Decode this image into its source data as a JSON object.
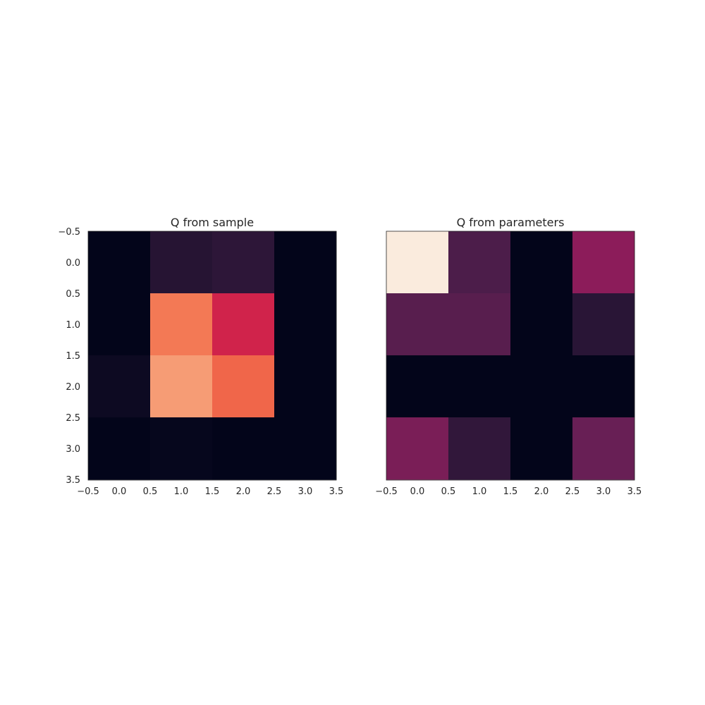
{
  "chart_data": [
    {
      "type": "heatmap",
      "title": "Q from sample",
      "xlabel": "",
      "ylabel": "",
      "xlim": [
        -0.5,
        3.5
      ],
      "ylim": [
        3.5,
        -0.5
      ],
      "y_axis_inverted": true,
      "x_tick_labels": [
        "−0.5",
        "0.0",
        "0.5",
        "1.0",
        "1.5",
        "2.0",
        "2.5",
        "3.0",
        "3.5"
      ],
      "y_tick_labels": [
        "−0.5",
        "0.0",
        "0.5",
        "1.0",
        "1.5",
        "2.0",
        "2.5",
        "3.0",
        "3.5"
      ],
      "show_y_ticks": true,
      "grid": false,
      "colormap": "rocket",
      "values": [
        [
          0.0,
          0.1,
          0.12,
          0.0
        ],
        [
          0.0,
          0.72,
          0.52,
          0.0
        ],
        [
          0.03,
          0.8,
          0.68,
          0.0
        ],
        [
          0.0,
          0.01,
          0.0,
          0.0
        ]
      ]
    },
    {
      "type": "heatmap",
      "title": "Q from parameters",
      "xlabel": "",
      "ylabel": "",
      "xlim": [
        -0.5,
        3.5
      ],
      "ylim": [
        3.5,
        -0.5
      ],
      "y_axis_inverted": true,
      "x_tick_labels": [
        "−0.5",
        "0.0",
        "0.5",
        "1.0",
        "1.5",
        "2.0",
        "2.5",
        "3.0",
        "3.5"
      ],
      "y_tick_labels": [],
      "show_y_ticks": false,
      "grid": false,
      "colormap": "rocket",
      "values": [
        [
          1.0,
          0.2,
          0.0,
          0.35
        ],
        [
          0.23,
          0.23,
          0.0,
          0.11
        ],
        [
          0.0,
          0.0,
          0.0,
          0.0
        ],
        [
          0.31,
          0.13,
          0.0,
          0.27
        ]
      ]
    }
  ],
  "colors": {
    "colormap_stops": [
      "#03051a",
      "#221331",
      "#451c47",
      "#691f55",
      "#921c5b",
      "#b91657",
      "#d92847",
      "#ed503e",
      "#f47d57",
      "#f6a47c",
      "#f7c9aa",
      "#faebdd"
    ],
    "text": "#262626",
    "axes_edge": "#262626",
    "background": "#ffffff"
  }
}
